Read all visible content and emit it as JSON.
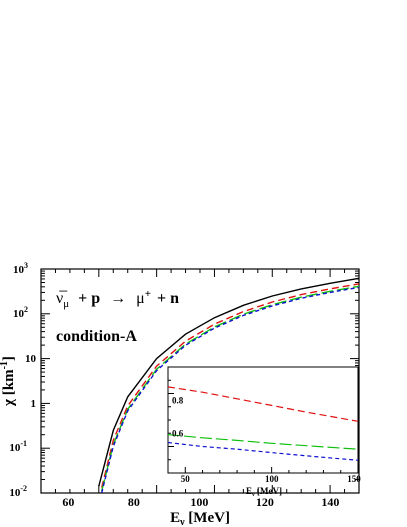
{
  "chart_data": [
    {
      "type": "line",
      "yscale": "log",
      "xlim": [
        40,
        150
      ],
      "ylim": [
        0.01,
        1000
      ],
      "xlabel_main": "E",
      "xlabel_sub": "ν",
      "xlabel_unit": " [MeV]",
      "ylabel_main": "χ",
      "ylabel_unit": " [km",
      "ylabel_sup": "-1",
      "ylabel_close": "]",
      "x_ticks": [
        "60",
        "80",
        "100",
        "120",
        "140"
      ],
      "y_ticks": [
        {
          "value": 0.01,
          "base": "10",
          "exp": "-2"
        },
        {
          "value": 0.1,
          "base": "10",
          "exp": "-1"
        },
        {
          "value": 1,
          "base": "1",
          "exp": ""
        },
        {
          "value": 10,
          "base": "10",
          "exp": ""
        },
        {
          "value": 100,
          "base": "10",
          "exp": "2"
        },
        {
          "value": 1000,
          "base": "10",
          "exp": "3"
        }
      ],
      "reaction": {
        "nu": "ν̅",
        "nu_sub": "μ",
        "plus1": "+",
        "p": "p",
        "arrow": "→",
        "mu": "μ",
        "mu_sup": "+",
        "plus2": "+",
        "n": "n"
      },
      "condition_label": "condition-A",
      "series": [
        {
          "color": "#000000",
          "dash": "solid",
          "x": [
            60,
            65,
            70,
            80,
            90,
            100,
            110,
            120,
            130,
            140,
            150
          ],
          "y": [
            0.0141,
            0.25,
            1.4,
            10,
            35,
            82,
            155,
            250,
            360,
            480,
            620
          ]
        },
        {
          "color": "#e01010",
          "dash": "long",
          "x": [
            61,
            65,
            70,
            80,
            90,
            100,
            110,
            120,
            130,
            140,
            150
          ],
          "y": [
            0.0132,
            0.15,
            0.88,
            6.8,
            24.5,
            59,
            112,
            183,
            268,
            360,
            467
          ]
        },
        {
          "color": "#10c010",
          "dash": "longer",
          "x": [
            61,
            65,
            70,
            80,
            90,
            100,
            110,
            120,
            130,
            140,
            150
          ],
          "y": [
            0.011,
            0.12,
            0.74,
            5.8,
            21,
            51,
            98,
            160,
            235,
            318,
            410
          ]
        },
        {
          "color": "#1010d0",
          "dash": "short",
          "x": [
            61,
            65,
            70,
            80,
            90,
            100,
            110,
            120,
            130,
            140,
            150
          ],
          "y": [
            0.0101,
            0.11,
            0.68,
            5.4,
            19.8,
            48,
            92,
            150,
            222,
            300,
            388
          ]
        }
      ]
    },
    {
      "type": "line",
      "inset": true,
      "xlim": [
        40,
        150
      ],
      "ylim": [
        0.5,
        0.9
      ],
      "xlabel_main": "E",
      "xlabel_sub": "ν",
      "xlabel_unit": " [MeV]",
      "x_ticks": [
        "50",
        "100",
        "150"
      ],
      "y_ticks": [
        "0.6",
        "0.8"
      ],
      "series": [
        {
          "color": "#e01010",
          "dash": "long",
          "x": [
            40,
            60,
            80,
            100,
            120,
            150
          ],
          "y": [
            0.825,
            0.805,
            0.78,
            0.755,
            0.73,
            0.695
          ]
        },
        {
          "color": "#10c010",
          "dash": "longer",
          "x": [
            40,
            60,
            80,
            100,
            120,
            150
          ],
          "y": [
            0.645,
            0.633,
            0.623,
            0.612,
            0.603,
            0.59
          ]
        },
        {
          "color": "#1010d0",
          "dash": "short",
          "x": [
            40,
            60,
            80,
            100,
            120,
            150
          ],
          "y": [
            0.615,
            0.6,
            0.59,
            0.577,
            0.565,
            0.548
          ]
        }
      ]
    }
  ]
}
